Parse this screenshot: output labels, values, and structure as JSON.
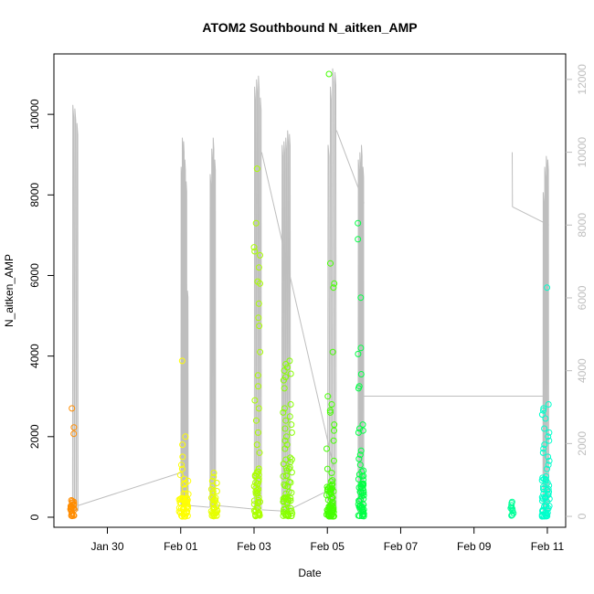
{
  "chart_data": {
    "type": "scatter",
    "title": "ATOM2 Southbound N_aitken_AMP",
    "xlabel": "Date",
    "ylabel": "N_aitken_AMP",
    "x_start": "2022-01-28",
    "x_end": "2022-02-11",
    "xlim": [
      "2022-01-28T13:00",
      "2022-02-11T12:00"
    ],
    "x_ticks": [
      {
        "date": "2022-01-30",
        "label": "Jan 30"
      },
      {
        "date": "2022-02-01",
        "label": "Feb 01"
      },
      {
        "date": "2022-02-03",
        "label": "Feb 03"
      },
      {
        "date": "2022-02-05",
        "label": "Feb 05"
      },
      {
        "date": "2022-02-07",
        "label": "Feb 07"
      },
      {
        "date": "2022-02-09",
        "label": "Feb 09"
      },
      {
        "date": "2022-02-11",
        "label": "Feb 11"
      }
    ],
    "ylim": [
      -250,
      11500
    ],
    "y_ticks": [
      0,
      2000,
      4000,
      6000,
      8000,
      10000
    ],
    "y2lim": [
      -300,
      12700
    ],
    "y2_ticks": [
      0,
      2000,
      4000,
      6000,
      8000,
      10000,
      12000
    ],
    "grid": false,
    "colors": {
      "line": "#bebebe",
      "right_axis": "#bebebe",
      "axis": "#000000"
    },
    "point_clusters": [
      {
        "center": "2022-01-29T01:00",
        "spread_h": 1.5,
        "color": "#ff8c00",
        "count": 20,
        "base_max": 350,
        "values": [
          2700,
          2230,
          2070,
          420,
          400,
          380,
          310,
          200
        ]
      },
      {
        "center": "2022-02-01T02:00",
        "spread_h": 3,
        "color": "#ffff00",
        "count": 45,
        "base_max": 800,
        "values": [
          3880,
          2000,
          1800,
          1500,
          1300,
          1200,
          1050,
          950,
          900,
          850
        ]
      },
      {
        "center": "2022-02-01T22:00",
        "spread_h": 2,
        "color": "#e6ff00",
        "count": 35,
        "base_max": 700,
        "values": [
          1100,
          1000,
          900,
          850,
          780
        ]
      },
      {
        "center": "2022-02-03T02:00",
        "spread_h": 2,
        "color": "#aaff00",
        "count": 45,
        "base_max": 1200,
        "values": [
          8650,
          7300,
          6700,
          6600,
          6500,
          6200,
          5850,
          5800,
          5300,
          4950,
          4750,
          4100,
          3520,
          3250,
          2900,
          2700,
          2400,
          2100,
          1800,
          1600
        ]
      },
      {
        "center": "2022-02-03T22:00",
        "spread_h": 3,
        "color": "#88ff00",
        "count": 55,
        "base_max": 1500,
        "values": [
          3880,
          3800,
          3720,
          3640,
          3560,
          3480,
          3400,
          3200,
          2800,
          2700,
          2600,
          2500,
          2400,
          2300,
          2200,
          2100,
          2000,
          1900,
          1800,
          1700
        ]
      },
      {
        "center": "2022-02-05T02:00",
        "spread_h": 2.5,
        "color": "#44ff00",
        "count": 60,
        "base_max": 900,
        "values": [
          11000,
          6300,
          5800,
          5700,
          4100,
          3000,
          2800,
          2650,
          2600,
          2300,
          2150,
          1900,
          1700,
          1400,
          1200,
          1100
        ]
      },
      {
        "center": "2022-02-05T22:00",
        "spread_h": 2,
        "color": "#00ff44",
        "count": 50,
        "base_max": 1200,
        "values": [
          7300,
          6900,
          5450,
          4200,
          4050,
          3550,
          3250,
          3200,
          2300,
          2200,
          2150,
          2100,
          1650,
          1550,
          1450,
          1300
        ]
      },
      {
        "center": "2022-02-10T01:00",
        "spread_h": 1,
        "color": "#00ff99",
        "count": 6,
        "base_max": 350,
        "values": [
          380,
          350,
          300,
          250,
          150,
          100
        ]
      },
      {
        "center": "2022-02-10T23:00",
        "spread_h": 2.5,
        "color": "#00ffcc",
        "count": 50,
        "base_max": 1100,
        "values": [
          5700,
          2800,
          2700,
          2650,
          2550,
          2450,
          2200,
          2100,
          2000,
          1900,
          1800,
          1700,
          1600,
          1500,
          1400,
          1300,
          1200
        ]
      }
    ],
    "line_series": {
      "name": "",
      "axis": "right",
      "segments": [
        {
          "start": "2022-01-29T01:00",
          "end": "2022-01-29T05:00",
          "peaks": [
            11300,
            11200,
            10800
          ],
          "base": 150
        },
        {
          "start": "2022-02-01T00:00",
          "end": "2022-02-01T05:00",
          "peaks": [
            9600,
            10400,
            10300,
            9800,
            9200,
            6200
          ],
          "base": 300
        },
        {
          "start": "2022-02-01T19:00",
          "end": "2022-02-01T23:00",
          "peaks": [
            9400,
            10100,
            10400,
            9800
          ],
          "base": 250
        },
        {
          "start": "2022-02-03T00:00",
          "end": "2022-02-03T05:00",
          "peaks": [
            11800,
            12000,
            12100,
            11500
          ],
          "base": 200
        },
        {
          "start": "2022-02-03T18:00",
          "end": "2022-02-04T00:00",
          "peaks": [
            10200,
            10300,
            10400,
            10600,
            10500
          ],
          "base": 150
        },
        {
          "start": "2022-02-05T00:00",
          "end": "2022-02-05T06:00",
          "peaks": [
            10200,
            11800,
            12300,
            12200
          ],
          "base": 200
        },
        {
          "start": "2022-02-05T20:00",
          "end": "2022-02-06T00:00",
          "peaks": [
            9800,
            10000,
            10200,
            9600
          ],
          "base": 100
        },
        {
          "start": "2022-02-10T21:00",
          "end": "2022-02-11T01:00",
          "peaks": [
            8900,
            9600,
            9900,
            9800
          ],
          "base": 150
        }
      ],
      "connections": [
        [
          "2022-01-29T05:00",
          300,
          "2022-02-01T00:00",
          1200
        ],
        [
          "2022-02-01T05:00",
          300,
          "2022-02-01T19:00",
          250
        ],
        [
          "2022-02-01T23:00",
          300,
          "2022-02-03T00:00",
          200
        ],
        [
          "2022-02-03T05:00",
          180,
          "2022-02-03T18:00",
          150
        ],
        [
          "2022-02-04T00:00",
          200,
          "2022-02-05T00:00",
          700
        ],
        [
          "2022-02-03T05:00",
          10000,
          "2022-02-05T05:00",
          1200
        ],
        [
          "2022-02-05T06:00",
          10600,
          "2022-02-06T00:00",
          8600
        ],
        [
          "2022-02-06T00:00",
          3300,
          "2022-02-10T21:00",
          3300
        ],
        [
          "2022-02-10T01:00",
          10000,
          "2022-02-10T01:10",
          8500
        ],
        [
          "2022-02-10T01:10",
          8500,
          "2022-02-11T01:00",
          8000
        ]
      ]
    }
  }
}
